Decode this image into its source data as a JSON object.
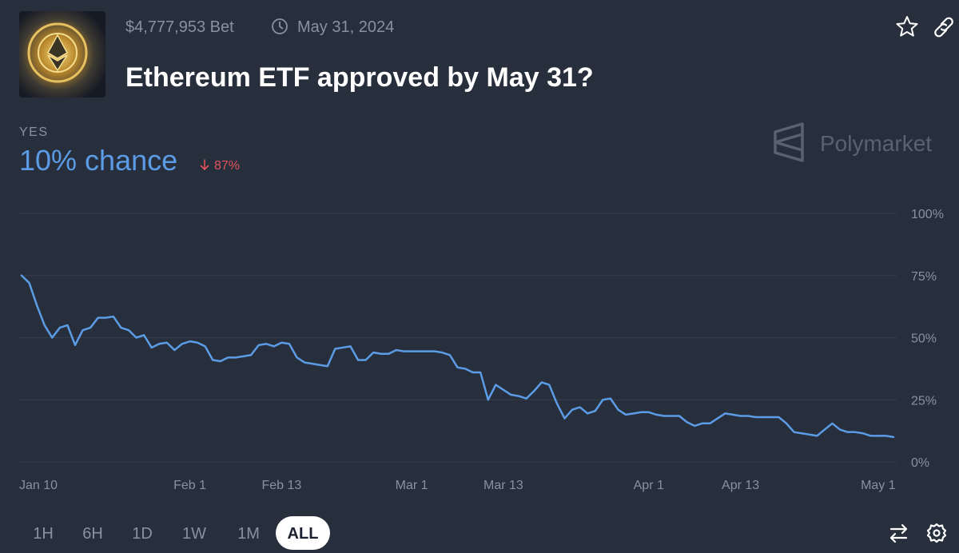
{
  "header": {
    "volume": "$4,777,953 Bet",
    "end_date": "May 31, 2024",
    "title": "Ethereum ETF approved by May 31?"
  },
  "outcome": {
    "label": "YES",
    "chance": "10% chance",
    "change": "87%"
  },
  "brand": "Polymarket",
  "ranges": [
    "1H",
    "6H",
    "1D",
    "1W",
    "1M",
    "ALL"
  ],
  "selected_range": 5,
  "chart_data": {
    "type": "line",
    "color": "#5c9ce6",
    "grid": true,
    "categories": [
      "Jan 10",
      "Jan 11",
      "Jan 12",
      "Jan 13",
      "Jan 14",
      "Jan 15",
      "Jan 16",
      "Jan 17",
      "Jan 18",
      "Jan 19",
      "Jan 20",
      "Jan 21",
      "Jan 22",
      "Jan 23",
      "Jan 24",
      "Jan 25",
      "Jan 26",
      "Jan 27",
      "Jan 28",
      "Jan 29",
      "Jan 30",
      "Jan 31",
      "Feb 1",
      "Feb 2",
      "Feb 3",
      "Feb 4",
      "Feb 5",
      "Feb 6",
      "Feb 7",
      "Feb 8",
      "Feb 9",
      "Feb 10",
      "Feb 11",
      "Feb 12",
      "Feb 13",
      "Feb 14",
      "Feb 15",
      "Feb 16",
      "Feb 17",
      "Feb 18",
      "Feb 19",
      "Feb 20",
      "Feb 21",
      "Feb 22",
      "Feb 23",
      "Feb 24",
      "Feb 25",
      "Feb 26",
      "Feb 27",
      "Feb 28",
      "Feb 29",
      "Mar 1",
      "Mar 2",
      "Mar 3",
      "Mar 4",
      "Mar 5",
      "Mar 6",
      "Mar 7",
      "Mar 8",
      "Mar 9",
      "Mar 10",
      "Mar 11",
      "Mar 12",
      "Mar 13",
      "Mar 14",
      "Mar 15",
      "Mar 16",
      "Mar 17",
      "Mar 18",
      "Mar 19",
      "Mar 20",
      "Mar 21",
      "Mar 22",
      "Mar 23",
      "Mar 24",
      "Mar 25",
      "Mar 26",
      "Mar 27",
      "Mar 28",
      "Mar 29",
      "Mar 30",
      "Mar 31",
      "Apr 1",
      "Apr 2",
      "Apr 3",
      "Apr 4",
      "Apr 5",
      "Apr 6",
      "Apr 7",
      "Apr 8",
      "Apr 9",
      "Apr 10",
      "Apr 11",
      "Apr 12",
      "Apr 13",
      "Apr 14",
      "Apr 15",
      "Apr 16",
      "Apr 17",
      "Apr 18",
      "Apr 19",
      "Apr 20",
      "Apr 21",
      "Apr 22",
      "Apr 23",
      "Apr 24",
      "Apr 25",
      "Apr 26",
      "Apr 27",
      "Apr 28",
      "Apr 29",
      "Apr 30",
      "May 1",
      "May 2",
      "May 3"
    ],
    "values": [
      75,
      72,
      63,
      55,
      50,
      54,
      55,
      47,
      53,
      54,
      58,
      58,
      58.5,
      54,
      53,
      50,
      51,
      46,
      47.5,
      48,
      45,
      47.5,
      48.5,
      48,
      46.5,
      41,
      40.5,
      42,
      42,
      42.5,
      43,
      47,
      47.5,
      46.5,
      48,
      47.5,
      42,
      40,
      39.5,
      39,
      38.5,
      45.5,
      46,
      46.5,
      41,
      41,
      44,
      43.5,
      43.5,
      45,
      44.5,
      44.5,
      44.5,
      44.5,
      44.5,
      44,
      43,
      38,
      37.5,
      36,
      36,
      25,
      31,
      29,
      27,
      26.5,
      25.5,
      28.5,
      32,
      31,
      23.5,
      17.5,
      21,
      22,
      19.5,
      20.5,
      25,
      25.5,
      21,
      19,
      19.5,
      20,
      20,
      19,
      18.5,
      18.5,
      18.5,
      16,
      14.5,
      15.5,
      15.5,
      17.5,
      19.5,
      19,
      18.5,
      18.5,
      18,
      18,
      18,
      18,
      15.5,
      12,
      11.5,
      11,
      10.5,
      13,
      15.5,
      13,
      12,
      12,
      11.5,
      10.5,
      10.5,
      10.5,
      10
    ],
    "xticks": [
      "Jan 10",
      "Feb 1",
      "Feb 13",
      "Mar 1",
      "Mar 13",
      "Apr 1",
      "Apr 13",
      "May 1"
    ],
    "ylim": [
      0,
      100
    ],
    "yticks": [
      {
        "value": 0,
        "label": "0%"
      },
      {
        "value": 25,
        "label": "25%"
      },
      {
        "value": 50,
        "label": "50%"
      },
      {
        "value": 75,
        "label": "75%"
      },
      {
        "value": 100,
        "label": "100%"
      }
    ]
  }
}
